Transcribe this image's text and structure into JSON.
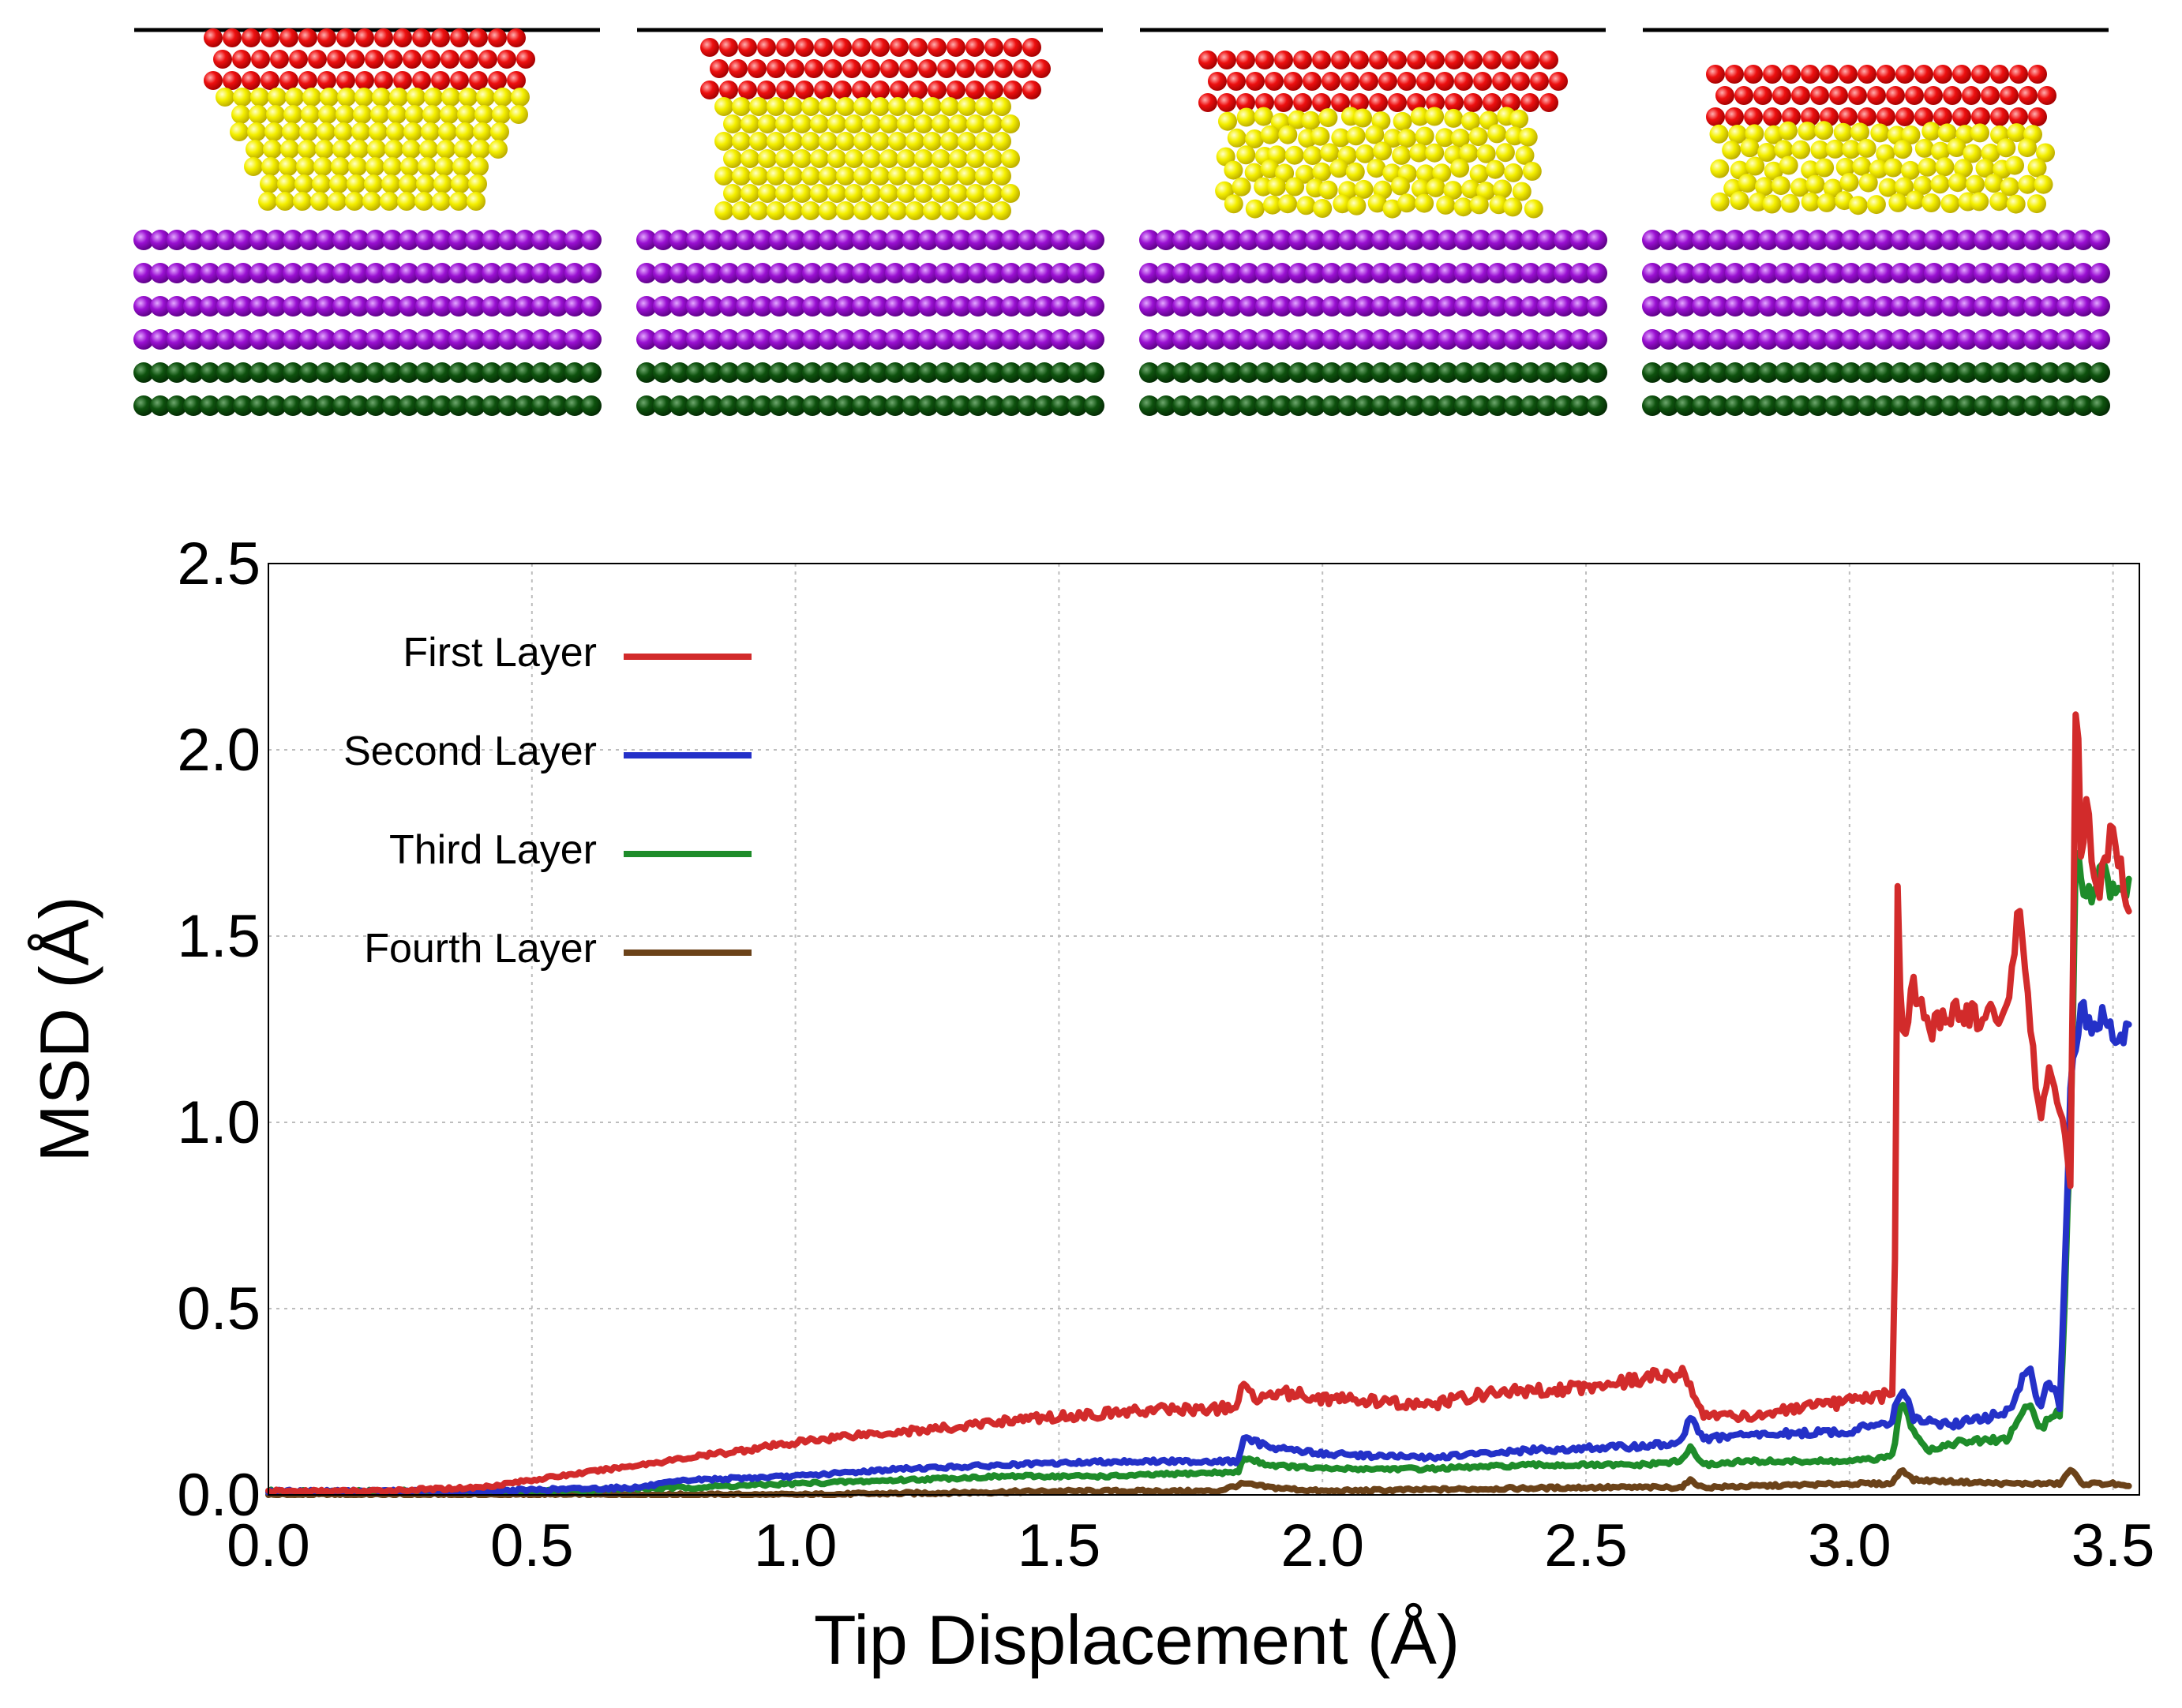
{
  "chart_data": {
    "type": "line",
    "title": "",
    "xlabel": "Tip Displacement (Å)",
    "ylabel": "MSD (Å)",
    "xlim": [
      0.0,
      3.55
    ],
    "ylim": [
      0.0,
      2.5
    ],
    "xticks": [
      "0.0",
      "0.5",
      "1.0",
      "1.5",
      "2.0",
      "2.5",
      "3.0",
      "3.5"
    ],
    "xtick_values": [
      0.0,
      0.5,
      1.0,
      1.5,
      2.0,
      2.5,
      3.0,
      3.5
    ],
    "yticks": [
      "0.0",
      "0.5",
      "1.0",
      "1.5",
      "2.0",
      "2.5"
    ],
    "ytick_values": [
      0.0,
      0.5,
      1.0,
      1.5,
      2.0,
      2.5
    ],
    "grid": true,
    "legend_position": "top-left",
    "series": [
      {
        "name": "First Layer",
        "color": "#d22b2b",
        "x": [
          0.0,
          0.2,
          0.4,
          0.5,
          0.6,
          0.7,
          0.8,
          0.9,
          1.0,
          1.1,
          1.2,
          1.3,
          1.4,
          1.5,
          1.6,
          1.7,
          1.8,
          1.84,
          1.85,
          1.88,
          1.9,
          1.95,
          2.0,
          2.1,
          2.2,
          2.3,
          2.4,
          2.5,
          2.6,
          2.68,
          2.7,
          2.72,
          2.8,
          2.9,
          3.0,
          3.08,
          3.085,
          3.09,
          3.1,
          3.12,
          3.15,
          3.2,
          3.25,
          3.3,
          3.32,
          3.34,
          3.36,
          3.38,
          3.4,
          3.42,
          3.43,
          3.44,
          3.45,
          3.47,
          3.5,
          3.53
        ],
        "y": [
          0.01,
          0.01,
          0.02,
          0.04,
          0.06,
          0.08,
          0.1,
          0.12,
          0.14,
          0.16,
          0.17,
          0.18,
          0.2,
          0.21,
          0.22,
          0.23,
          0.23,
          0.24,
          0.3,
          0.25,
          0.28,
          0.27,
          0.26,
          0.25,
          0.24,
          0.27,
          0.28,
          0.29,
          0.31,
          0.33,
          0.28,
          0.22,
          0.21,
          0.23,
          0.25,
          0.27,
          0.3,
          1.7,
          1.2,
          1.38,
          1.25,
          1.3,
          1.28,
          1.3,
          1.58,
          1.3,
          1.0,
          1.15,
          1.05,
          0.8,
          2.25,
          1.7,
          1.85,
          1.6,
          1.8,
          1.55
        ]
      },
      {
        "name": "Second Layer",
        "color": "#2431c8",
        "x": [
          0.0,
          0.4,
          0.7,
          0.8,
          1.0,
          1.2,
          1.4,
          1.6,
          1.8,
          1.84,
          1.85,
          1.9,
          2.0,
          2.2,
          2.4,
          2.6,
          2.68,
          2.7,
          2.72,
          2.8,
          3.0,
          3.08,
          3.1,
          3.12,
          3.2,
          3.3,
          3.34,
          3.36,
          3.38,
          3.4,
          3.42,
          3.44,
          3.46,
          3.48,
          3.5,
          3.53
        ],
        "y": [
          0.01,
          0.01,
          0.02,
          0.04,
          0.05,
          0.07,
          0.08,
          0.09,
          0.09,
          0.09,
          0.15,
          0.13,
          0.11,
          0.1,
          0.12,
          0.13,
          0.14,
          0.22,
          0.15,
          0.16,
          0.17,
          0.2,
          0.3,
          0.2,
          0.19,
          0.22,
          0.35,
          0.24,
          0.3,
          0.24,
          1.1,
          1.3,
          1.25,
          1.3,
          1.22,
          1.25
        ]
      },
      {
        "name": "Third Layer",
        "color": "#1e8c2a",
        "x": [
          0.0,
          0.5,
          0.8,
          1.0,
          1.2,
          1.4,
          1.6,
          1.8,
          1.84,
          1.85,
          1.9,
          2.0,
          2.2,
          2.4,
          2.6,
          2.68,
          2.7,
          2.72,
          2.8,
          3.0,
          3.08,
          3.1,
          3.12,
          3.15,
          3.2,
          3.3,
          3.34,
          3.36,
          3.38,
          3.4,
          3.42,
          3.43,
          3.45,
          3.48,
          3.5,
          3.53
        ],
        "y": [
          0.01,
          0.01,
          0.02,
          0.03,
          0.04,
          0.05,
          0.05,
          0.06,
          0.06,
          0.1,
          0.08,
          0.07,
          0.07,
          0.08,
          0.08,
          0.09,
          0.13,
          0.08,
          0.09,
          0.09,
          0.1,
          0.25,
          0.18,
          0.12,
          0.14,
          0.15,
          0.25,
          0.18,
          0.2,
          0.22,
          1.0,
          1.75,
          1.6,
          1.68,
          1.62,
          1.63
        ]
      },
      {
        "name": "Fourth Layer",
        "color": "#6b4219",
        "x": [
          0.0,
          0.5,
          1.0,
          1.5,
          1.8,
          1.85,
          1.9,
          2.0,
          2.5,
          2.68,
          2.7,
          2.72,
          3.0,
          3.08,
          3.1,
          3.12,
          3.3,
          3.4,
          3.42,
          3.44,
          3.5,
          3.53
        ],
        "y": [
          0.0,
          0.0,
          0.0,
          0.01,
          0.01,
          0.03,
          0.02,
          0.01,
          0.02,
          0.02,
          0.04,
          0.02,
          0.03,
          0.03,
          0.07,
          0.04,
          0.03,
          0.03,
          0.07,
          0.03,
          0.03,
          0.02
        ]
      }
    ]
  },
  "snapshots": {
    "count": 4,
    "colors": {
      "tip_top": "#e00000",
      "tip_bottom": "#f2f200",
      "substrate_upper": "#8a00c2",
      "substrate_lower": "#0c4d0c",
      "tip_top_shade": "#a00000",
      "tip_bottom_shade": "#b8a800",
      "substrate_upper_shade": "#5a0082",
      "substrate_lower_shade": "#032803"
    }
  }
}
